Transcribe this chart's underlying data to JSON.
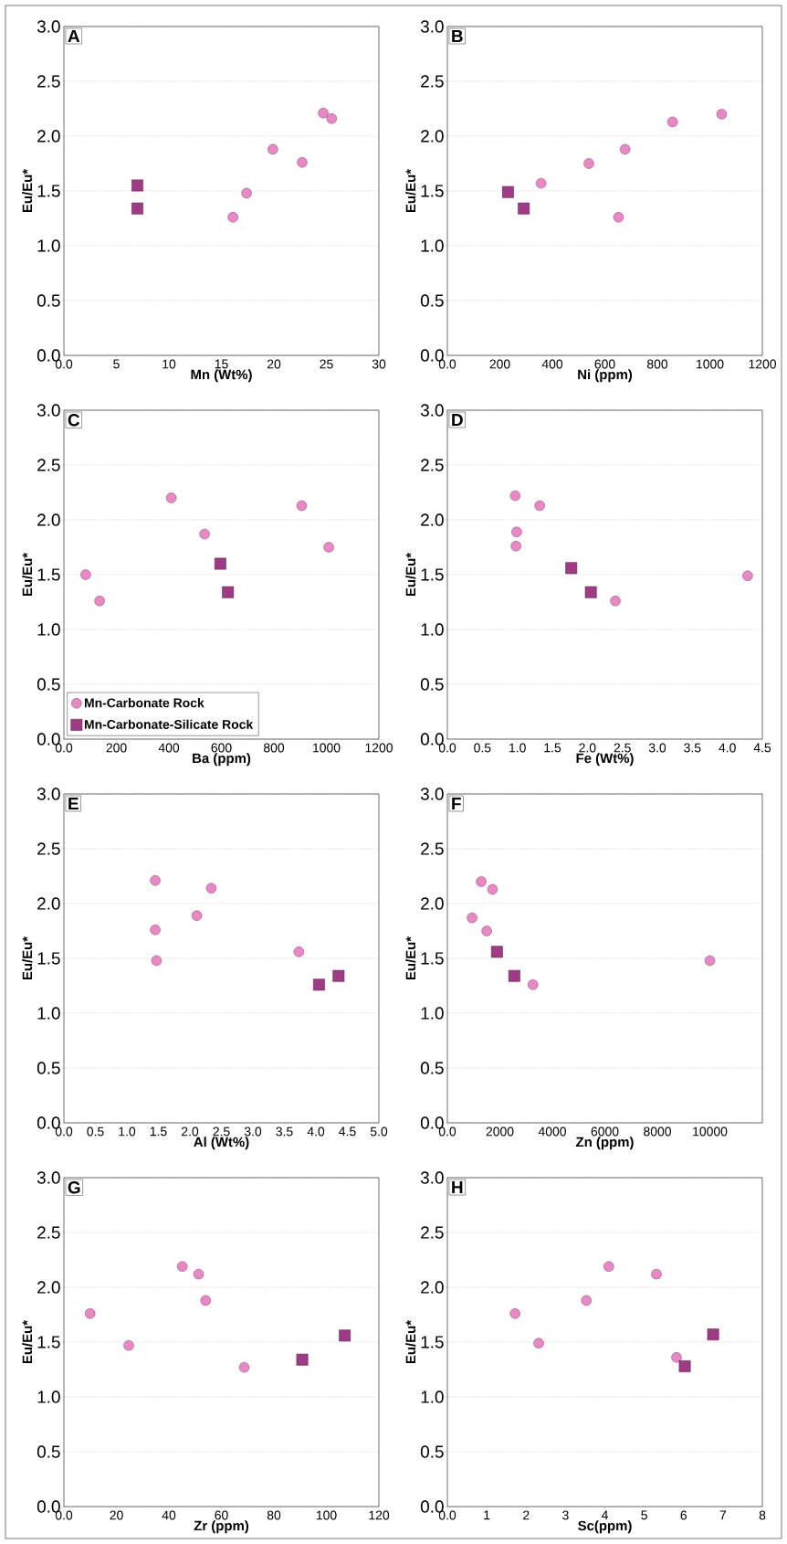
{
  "chart_data": [
    {
      "type": "scatter",
      "title": "A",
      "xlabel": "Mn (Wt%)",
      "ylabel": "Eu/Eu*",
      "xlim": [
        0,
        30
      ],
      "xticks": [
        {
          "value": 0,
          "label": "0.0"
        },
        5,
        10,
        15,
        20,
        25,
        30
      ],
      "ylim": [
        0,
        3
      ],
      "yticks": [
        {
          "value": 0,
          "label": "0.0"
        },
        0.5,
        {
          "value": 1,
          "label": "1.0"
        },
        1.5,
        {
          "value": 2,
          "label": "2.0"
        },
        2.5,
        {
          "value": 3,
          "label": "3.0"
        }
      ],
      "grid": "y",
      "series": [
        {
          "color": "#e889c6",
          "marker": "circle",
          "x": [
            16.1,
            17.4,
            19.9,
            22.7,
            24.7,
            25.5
          ],
          "values": [
            1.26,
            1.48,
            1.88,
            1.76,
            2.21,
            2.16
          ]
        },
        {
          "color": "#9e3b85",
          "marker": "square",
          "x": [
            7.0,
            7.0
          ],
          "values": [
            1.55,
            1.34
          ]
        }
      ]
    },
    {
      "type": "scatter",
      "title": "B",
      "xlabel": "Ni (ppm)",
      "ylabel": "Eu/Eu*",
      "xlim": [
        0,
        1200
      ],
      "xticks": [
        {
          "value": 0,
          "label": "0.0"
        },
        200,
        400,
        600,
        800,
        1000,
        1200
      ],
      "ylim": [
        0,
        3
      ],
      "yticks": [
        {
          "value": 0,
          "label": "0.0"
        },
        0.5,
        {
          "value": 1,
          "label": "1.0"
        },
        1.5,
        {
          "value": 2,
          "label": "2.0"
        },
        2.5,
        {
          "value": 3,
          "label": "3.0"
        }
      ],
      "grid": "y",
      "series": [
        {
          "color": "#e889c6",
          "marker": "circle",
          "x": [
            357,
            539,
            652,
            677,
            858,
            1045
          ],
          "values": [
            1.57,
            1.75,
            1.26,
            1.88,
            2.13,
            2.2
          ]
        },
        {
          "color": "#9e3b85",
          "marker": "square",
          "x": [
            231,
            291
          ],
          "values": [
            1.49,
            1.34
          ]
        }
      ]
    },
    {
      "type": "scatter",
      "title": "C",
      "xlabel": "Ba (ppm)",
      "ylabel": "Eu/Eu*",
      "xlim": [
        0,
        1200
      ],
      "xticks": [
        {
          "value": 0,
          "label": "0.0"
        },
        200,
        400,
        600,
        800,
        1000,
        1200
      ],
      "ylim": [
        0,
        3
      ],
      "yticks": [
        {
          "value": 0,
          "label": "0.0"
        },
        0.5,
        {
          "value": 1,
          "label": "1.0"
        },
        1.5,
        {
          "value": 2,
          "label": "2.0"
        },
        2.5,
        {
          "value": 3,
          "label": "3.0"
        }
      ],
      "grid": "y",
      "legend": "bottom left",
      "series": [
        {
          "name": "Mn-Carbonate Rock",
          "color": "#e889c6",
          "marker": "circle",
          "x": [
            83,
            136,
            409,
            536,
            906,
            1009
          ],
          "values": [
            1.5,
            1.26,
            2.2,
            1.87,
            2.13,
            1.75
          ]
        },
        {
          "name": "Mn-Carbonate-Silicate Rock",
          "color": "#9e3b85",
          "marker": "square",
          "x": [
            596,
            625
          ],
          "values": [
            1.6,
            1.34
          ]
        }
      ]
    },
    {
      "type": "scatter",
      "title": "D",
      "xlabel": "Fe (Wt%)",
      "ylabel": "Eu/Eu*",
      "xlim": [
        0,
        4.5
      ],
      "xticks": [
        {
          "value": 0,
          "label": "0.0"
        },
        0.5,
        {
          "value": 1,
          "label": "1.0"
        },
        1.5,
        {
          "value": 2,
          "label": "2.0"
        },
        2.5,
        {
          "value": 3,
          "label": "3.0"
        },
        3.5,
        {
          "value": 4,
          "label": "4.0"
        },
        4.5
      ],
      "ylim": [
        0,
        3
      ],
      "yticks": [
        {
          "value": 0,
          "label": "0.0"
        },
        0.5,
        {
          "value": 1,
          "label": "1.0"
        },
        1.5,
        {
          "value": 2,
          "label": "2.0"
        },
        2.5,
        {
          "value": 3,
          "label": "3.0"
        }
      ],
      "grid": "y",
      "series": [
        {
          "color": "#e889c6",
          "marker": "circle",
          "x": [
            0.97,
            1.32,
            0.99,
            0.98,
            2.4,
            4.29
          ],
          "values": [
            2.22,
            2.13,
            1.89,
            1.76,
            1.26,
            1.49
          ]
        },
        {
          "color": "#9e3b85",
          "marker": "square",
          "x": [
            1.77,
            2.05
          ],
          "values": [
            1.56,
            1.34
          ]
        }
      ]
    },
    {
      "type": "scatter",
      "title": "E",
      "xlabel": "Al (Wt%)",
      "ylabel": "Eu/Eu*",
      "xlim": [
        0,
        5
      ],
      "xticks": [
        {
          "value": 0,
          "label": "0.0"
        },
        0.5,
        {
          "value": 1,
          "label": "1.0"
        },
        1.5,
        {
          "value": 2,
          "label": "2.0"
        },
        2.5,
        {
          "value": 3,
          "label": "3.0"
        },
        3.5,
        {
          "value": 4,
          "label": "4.0"
        },
        4.5,
        {
          "value": 5,
          "label": "5.0"
        }
      ],
      "ylim": [
        0,
        3
      ],
      "yticks": [
        {
          "value": 0,
          "label": "0.0"
        },
        0.5,
        {
          "value": 1,
          "label": "1.0"
        },
        1.5,
        {
          "value": 2,
          "label": "2.0"
        },
        2.5,
        {
          "value": 3,
          "label": "3.0"
        }
      ],
      "grid": "y",
      "series": [
        {
          "color": "#e889c6",
          "marker": "circle",
          "x": [
            1.45,
            1.45,
            1.47,
            2.11,
            2.34,
            3.73
          ],
          "values": [
            2.21,
            1.76,
            1.48,
            1.89,
            2.14,
            1.56
          ]
        },
        {
          "color": "#9e3b85",
          "marker": "square",
          "x": [
            4.05,
            4.36
          ],
          "values": [
            1.26,
            1.34
          ]
        }
      ]
    },
    {
      "type": "scatter",
      "title": "F",
      "xlabel": "Zn (ppm)",
      "ylabel": "Eu/Eu*",
      "xlim": [
        0,
        12000
      ],
      "xticks": [
        {
          "value": 0,
          "label": "0.0"
        },
        2000,
        4000,
        6000,
        8000,
        10000
      ],
      "ylim": [
        0,
        3
      ],
      "yticks": [
        {
          "value": 0,
          "label": "0.0"
        },
        0.5,
        {
          "value": 1,
          "label": "1.0"
        },
        1.5,
        {
          "value": 2,
          "label": "2.0"
        },
        2.5,
        {
          "value": 3,
          "label": "3.0"
        }
      ],
      "grid": "y",
      "series": [
        {
          "color": "#e889c6",
          "marker": "circle",
          "x": [
            940,
            1290,
            1720,
            1500,
            3260,
            10000
          ],
          "values": [
            1.87,
            2.2,
            2.13,
            1.75,
            1.26,
            1.48
          ]
        },
        {
          "color": "#9e3b85",
          "marker": "square",
          "x": [
            1890,
            2550
          ],
          "values": [
            1.56,
            1.34
          ]
        }
      ]
    },
    {
      "type": "scatter",
      "title": "G",
      "xlabel": "Zr (ppm)",
      "ylabel": "Eu/Eu*",
      "xlim": [
        0,
        120
      ],
      "xticks": [
        {
          "value": 0,
          "label": "0.0"
        },
        20,
        40,
        60,
        80,
        100,
        120
      ],
      "ylim": [
        0,
        3
      ],
      "yticks": [
        {
          "value": 0,
          "label": "0.0"
        },
        0.5,
        {
          "value": 1,
          "label": "1.0"
        },
        1.5,
        {
          "value": 2,
          "label": "2.0"
        },
        2.5,
        {
          "value": 3,
          "label": "3.0"
        }
      ],
      "grid": "y",
      "series": [
        {
          "color": "#e889c6",
          "marker": "circle",
          "x": [
            10,
            24.7,
            45.1,
            51.3,
            54,
            68.7
          ],
          "values": [
            1.76,
            1.47,
            2.19,
            2.12,
            1.88,
            1.27
          ]
        },
        {
          "color": "#9e3b85",
          "marker": "square",
          "x": [
            90.8,
            107
          ],
          "values": [
            1.34,
            1.56
          ]
        }
      ]
    },
    {
      "type": "scatter",
      "title": "H",
      "xlabel": "Sc(ppm)",
      "ylabel": "Eu/Eu*",
      "xlim": [
        0,
        8
      ],
      "xticks": [
        {
          "value": 0,
          "label": "0.0"
        },
        1,
        2,
        3,
        4,
        5,
        6,
        7,
        8
      ],
      "ylim": [
        0,
        3
      ],
      "yticks": [
        {
          "value": 0,
          "label": "0.0"
        },
        0.5,
        {
          "value": 1,
          "label": "1.0"
        },
        1.5,
        {
          "value": 2,
          "label": "2.0"
        },
        2.5,
        {
          "value": 3,
          "label": "3.0"
        }
      ],
      "grid": "y",
      "series": [
        {
          "color": "#e889c6",
          "marker": "circle",
          "x": [
            1.72,
            2.32,
            3.53,
            4.1,
            5.31,
            5.82
          ],
          "values": [
            1.76,
            1.49,
            1.88,
            2.19,
            2.12,
            1.36
          ]
        },
        {
          "color": "#9e3b85",
          "marker": "square",
          "x": [
            6.03,
            6.75
          ],
          "values": [
            1.28,
            1.57
          ]
        }
      ]
    }
  ]
}
